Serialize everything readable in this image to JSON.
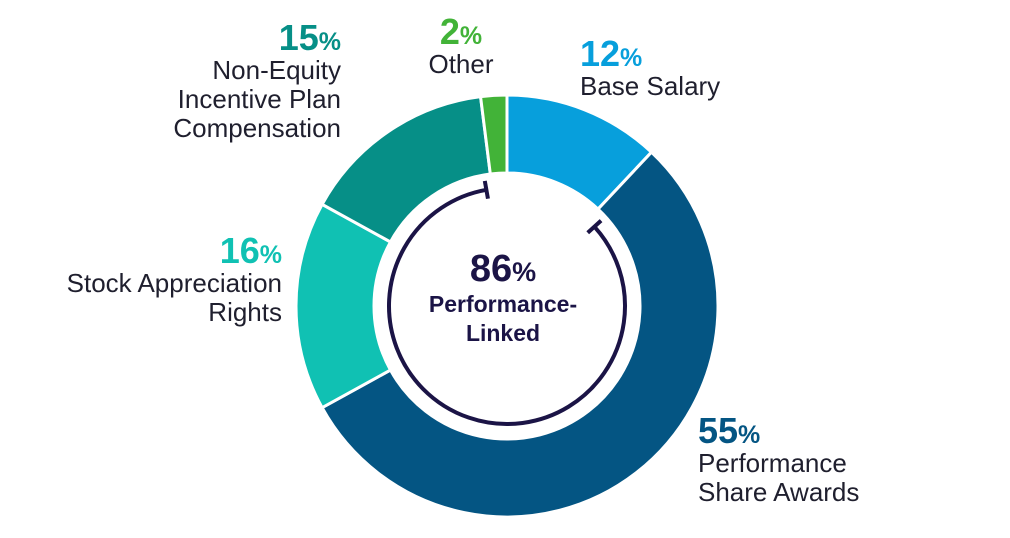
{
  "chart_data": {
    "type": "pie",
    "style": "donut",
    "center_value": "86",
    "center_value_unit": "%",
    "center_label_lines": [
      "Performance-",
      "Linked"
    ],
    "slices": [
      {
        "value": "12",
        "unit": "%",
        "label_lines": [
          "Base Salary"
        ],
        "color": "#079fdc"
      },
      {
        "value": "55",
        "unit": "%",
        "label_lines": [
          "Performance",
          "Share Awards"
        ],
        "color": "#045583"
      },
      {
        "value": "16",
        "unit": "%",
        "label_lines": [
          "Stock Appreciation",
          "Rights"
        ],
        "color": "#10c1b3"
      },
      {
        "value": "15",
        "unit": "%",
        "label_lines": [
          "Non-Equity",
          "Incentive Plan",
          "Compensation"
        ],
        "color": "#068f87"
      },
      {
        "value": "2",
        "unit": "%",
        "label_lines": [
          "Other"
        ],
        "color": "#42b338"
      }
    ],
    "bracket_color": "#1b1446"
  }
}
